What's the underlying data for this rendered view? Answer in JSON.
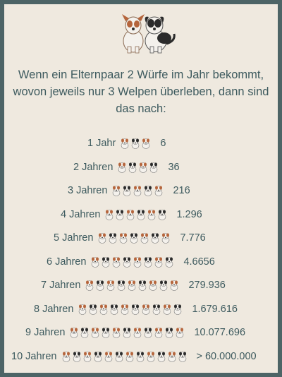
{
  "headline": "Wenn ein Elternpaar 2 Würfe im Jahr bekommt, wovon jeweils nur 3 Welpen überleben, dann sind das nach:",
  "hero_icon": "two-dogs-illustration",
  "puppy_icon": "puppy-icon",
  "colors": {
    "background": "#4d6466",
    "card": "#efe9df",
    "text": "#3d5a5e",
    "brown": "#b5653c",
    "black": "#2b2b2b"
  },
  "rows": [
    {
      "label": "1 Jahr",
      "pups": 3,
      "count": "6"
    },
    {
      "label": "2 Jahren",
      "pups": 4,
      "count": "36"
    },
    {
      "label": "3 Jahren",
      "pups": 5,
      "count": "216"
    },
    {
      "label": "4 Jahren",
      "pups": 6,
      "count": "1.296"
    },
    {
      "label": "5 Jahren",
      "pups": 7,
      "count": "7.776"
    },
    {
      "label": "6 Jahren",
      "pups": 8,
      "count": "4.6656"
    },
    {
      "label": "7 Jahren",
      "pups": 9,
      "count": "279.936"
    },
    {
      "label": "8 Jahren",
      "pups": 10,
      "count": "1.679.616"
    },
    {
      "label": "9 Jahren",
      "pups": 11,
      "count": "10.077.696"
    },
    {
      "label": "10 Jahren",
      "pups": 12,
      "count": "> 60.000.000"
    }
  ]
}
